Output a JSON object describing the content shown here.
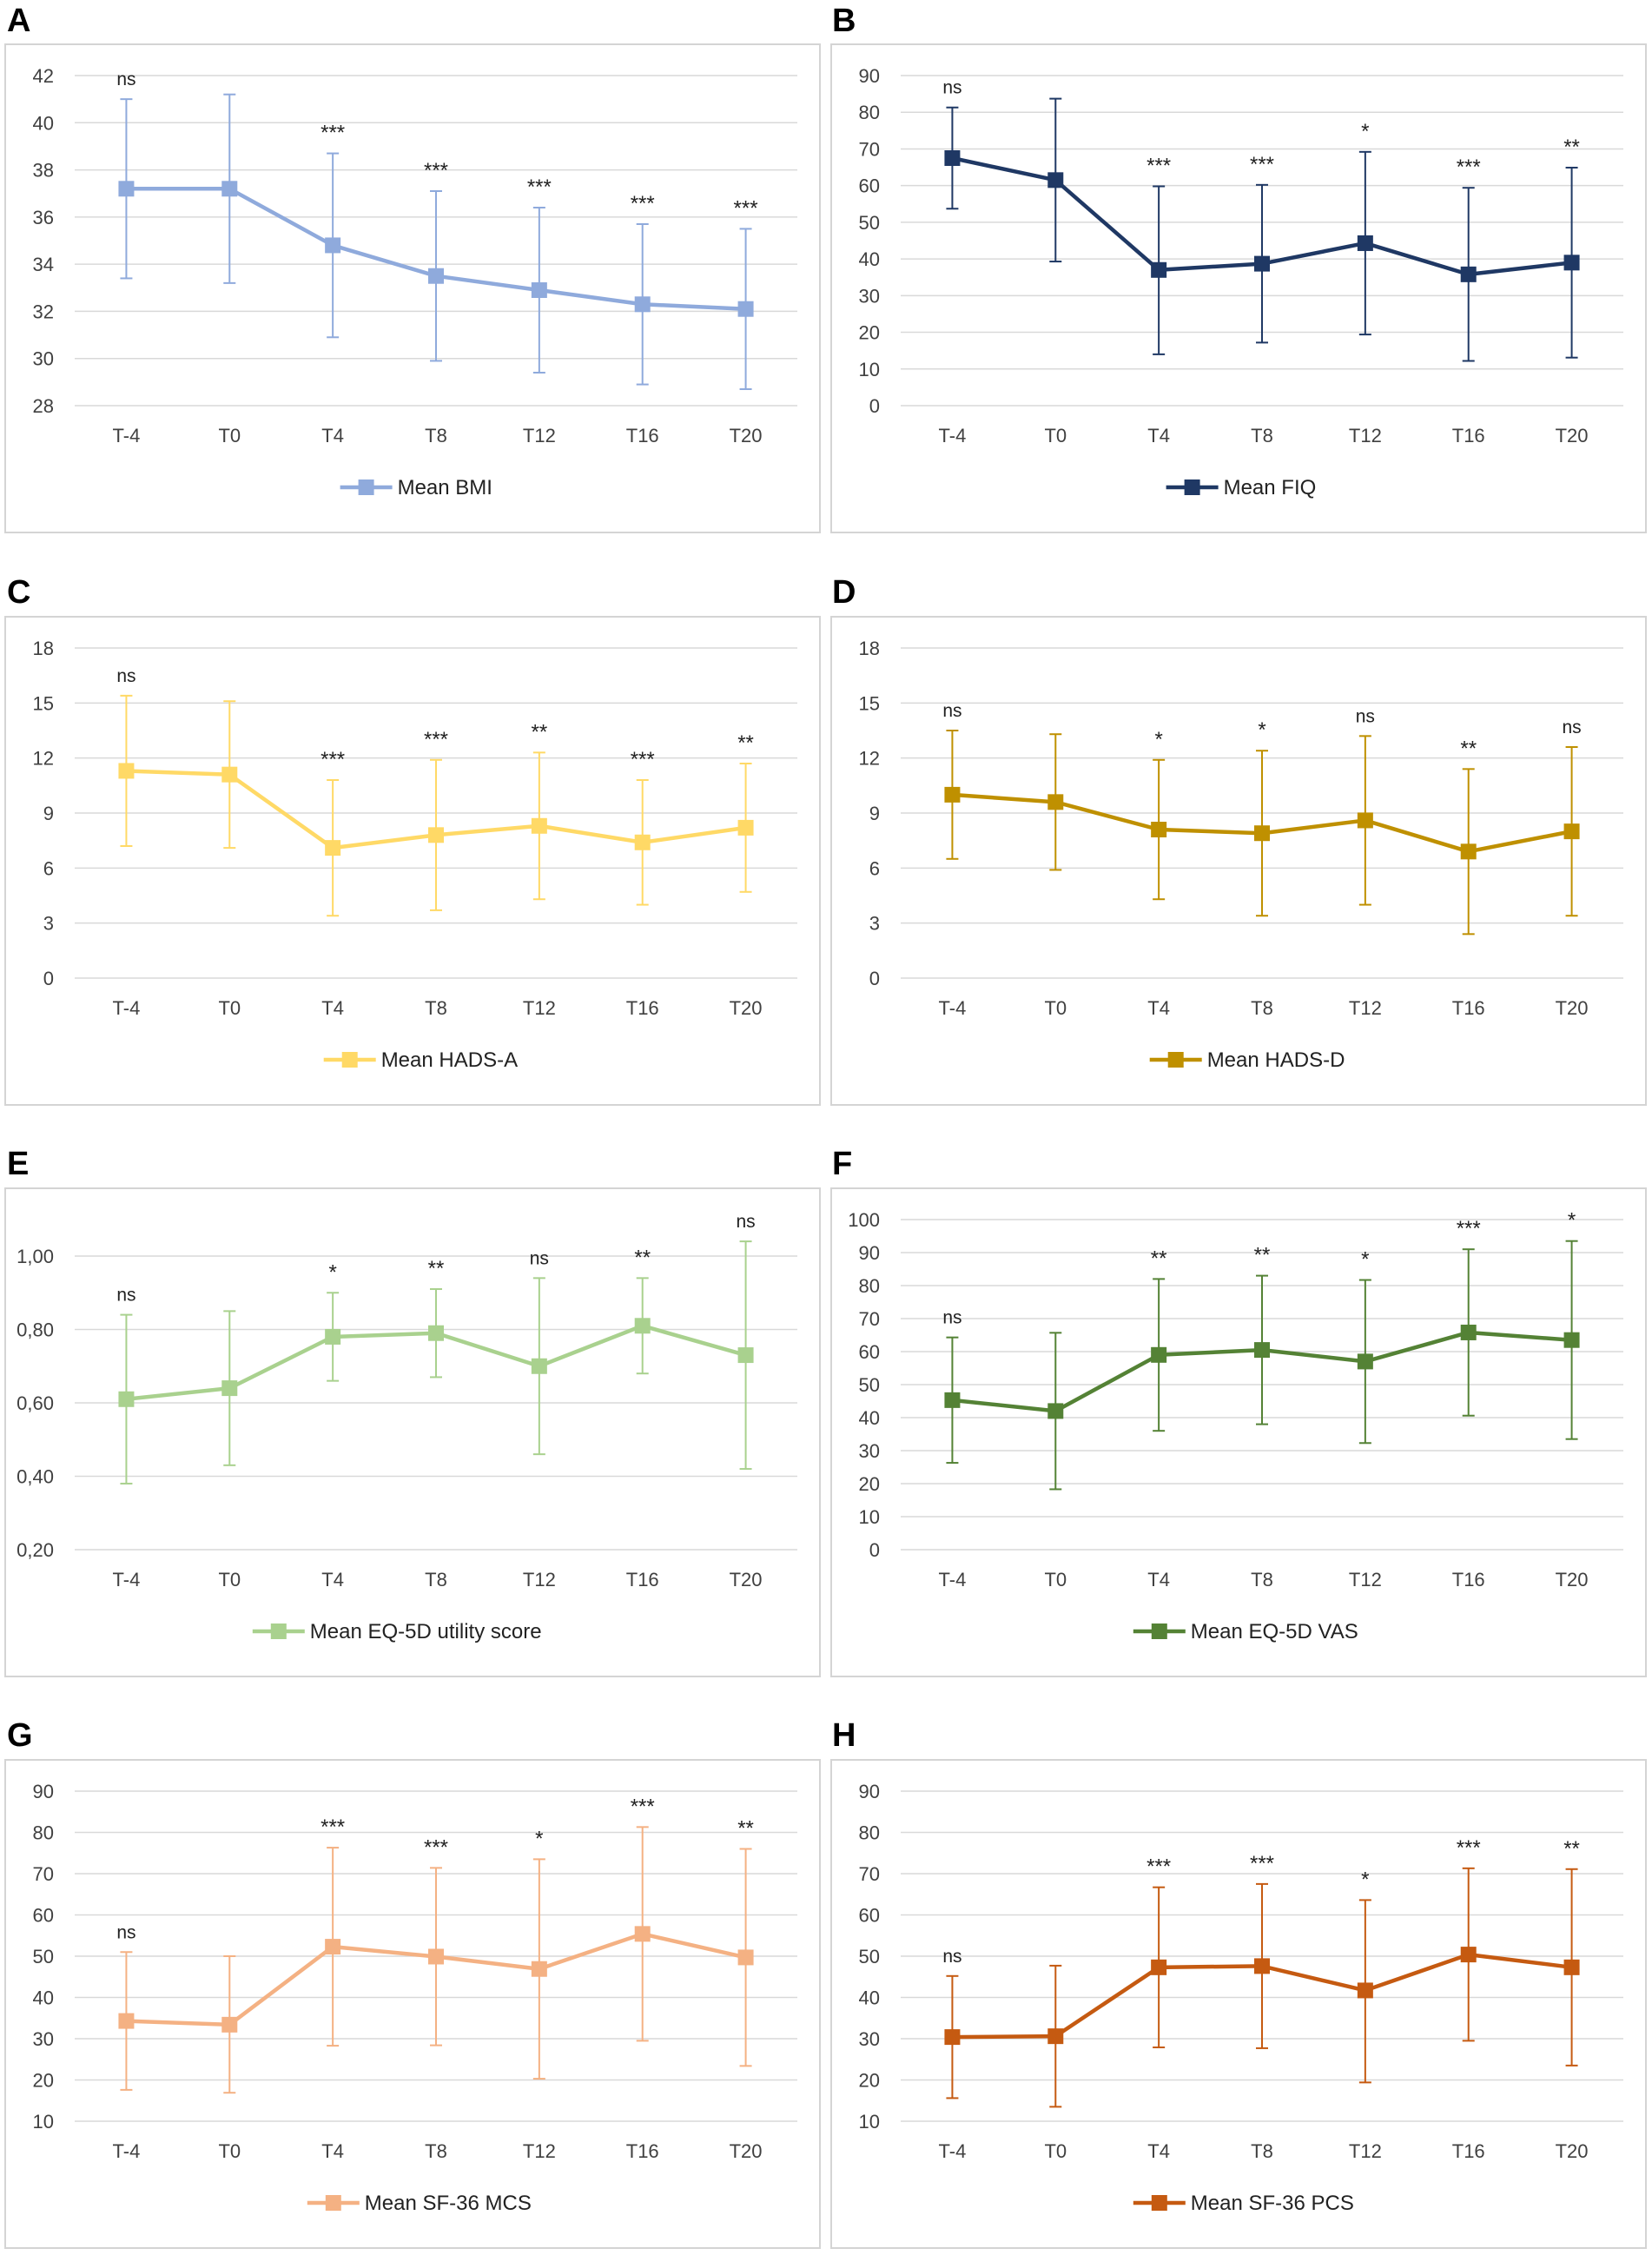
{
  "chart_data": [
    {
      "panel": "A",
      "type": "line",
      "legend": "Mean BMI",
      "color": "#8faadc",
      "categories": [
        "T-4",
        "T0",
        "T4",
        "T8",
        "T12",
        "T16",
        "T20"
      ],
      "values": [
        37.2,
        37.2,
        34.8,
        33.5,
        32.9,
        32.3,
        32.1
      ],
      "error_upper": [
        41.0,
        41.2,
        38.7,
        37.1,
        36.4,
        35.7,
        35.5
      ],
      "error_lower": [
        33.4,
        33.2,
        30.9,
        29.9,
        29.4,
        28.9,
        28.7
      ],
      "annotations": [
        "ns",
        "",
        "***",
        "***",
        "***",
        "***",
        "***"
      ],
      "ylim": [
        28,
        42
      ],
      "yticks": [
        "28",
        "30",
        "32",
        "34",
        "36",
        "38",
        "40",
        "42"
      ],
      "legend_position": "bottom"
    },
    {
      "panel": "B",
      "type": "line",
      "legend": "Mean FIQ",
      "color": "#1f3864",
      "categories": [
        "T-4",
        "T0",
        "T4",
        "T8",
        "T12",
        "T16",
        "T20"
      ],
      "values": [
        67.5,
        61.5,
        37.0,
        38.7,
        44.3,
        35.8,
        39.0
      ],
      "error_upper": [
        81.3,
        83.7,
        59.8,
        60.2,
        69.2,
        59.4,
        64.9
      ],
      "error_lower": [
        53.7,
        39.3,
        14.0,
        17.2,
        19.4,
        12.2,
        13.1
      ],
      "annotations": [
        "ns",
        "",
        "***",
        "***",
        "*",
        "***",
        "**"
      ],
      "ylim": [
        0,
        90
      ],
      "yticks": [
        "0",
        "10",
        "20",
        "30",
        "40",
        "50",
        "60",
        "70",
        "80",
        "90"
      ],
      "legend_position": "bottom"
    },
    {
      "panel": "C",
      "type": "line",
      "legend": "Mean HADS-A",
      "color": "#ffd966",
      "categories": [
        "T-4",
        "T0",
        "T4",
        "T8",
        "T12",
        "T16",
        "T20"
      ],
      "values": [
        11.3,
        11.1,
        7.1,
        7.8,
        8.3,
        7.4,
        8.2
      ],
      "error_upper": [
        15.4,
        15.1,
        10.8,
        11.9,
        12.3,
        10.8,
        11.7
      ],
      "error_lower": [
        7.2,
        7.1,
        3.4,
        3.7,
        4.3,
        4.0,
        4.7
      ],
      "annotations": [
        "ns",
        "",
        "***",
        "***",
        "**",
        "***",
        "**"
      ],
      "ylim": [
        0,
        18
      ],
      "yticks": [
        "0",
        "3",
        "6",
        "9",
        "12",
        "15",
        "18"
      ],
      "legend_position": "bottom"
    },
    {
      "panel": "D",
      "type": "line",
      "legend": "Mean HADS-D",
      "color": "#bf9000",
      "categories": [
        "T-4",
        "T0",
        "T4",
        "T8",
        "T12",
        "T16",
        "T20"
      ],
      "values": [
        10.0,
        9.6,
        8.1,
        7.9,
        8.6,
        6.9,
        8.0
      ],
      "error_upper": [
        13.5,
        13.3,
        11.9,
        12.4,
        13.2,
        11.4,
        12.6
      ],
      "error_lower": [
        6.5,
        5.9,
        4.3,
        3.4,
        4.0,
        2.4,
        3.4
      ],
      "annotations": [
        "ns",
        "",
        "*",
        "*",
        "ns",
        "**",
        "ns"
      ],
      "ylim": [
        0,
        18
      ],
      "yticks": [
        "0",
        "3",
        "6",
        "9",
        "12",
        "15",
        "18"
      ],
      "legend_position": "bottom"
    },
    {
      "panel": "E",
      "type": "line",
      "legend": "Mean EQ-5D utility score",
      "color": "#a9d18e",
      "categories": [
        "T-4",
        "T0",
        "T4",
        "T8",
        "T12",
        "T16",
        "T20"
      ],
      "values": [
        0.61,
        0.64,
        0.78,
        0.79,
        0.7,
        0.81,
        0.73
      ],
      "error_upper": [
        0.84,
        0.85,
        0.9,
        0.91,
        0.94,
        0.94,
        1.04
      ],
      "error_lower": [
        0.38,
        0.43,
        0.66,
        0.67,
        0.46,
        0.68,
        0.42
      ],
      "annotations": [
        "ns",
        "",
        "*",
        "**",
        "ns",
        "**",
        "ns"
      ],
      "ylim": [
        0.2,
        1.0
      ],
      "yticks": [
        "0,20",
        "0,40",
        "0,60",
        "0,80",
        "1,00"
      ],
      "legend_position": "bottom"
    },
    {
      "panel": "F",
      "type": "line",
      "legend": "Mean EQ-5D VAS",
      "color": "#548235",
      "categories": [
        "T-4",
        "T0",
        "T4",
        "T8",
        "T12",
        "T16",
        "T20"
      ],
      "values": [
        45.3,
        42.0,
        59.0,
        60.5,
        57.0,
        65.8,
        63.5
      ],
      "error_upper": [
        64.3,
        65.7,
        82.0,
        83.0,
        81.7,
        91.0,
        93.5
      ],
      "error_lower": [
        26.3,
        18.3,
        36.0,
        38.0,
        32.3,
        40.6,
        33.5
      ],
      "annotations": [
        "ns",
        "",
        "**",
        "**",
        "*",
        "***",
        "*"
      ],
      "ylim": [
        0,
        100
      ],
      "yticks": [
        "0",
        "10",
        "20",
        "30",
        "40",
        "50",
        "60",
        "70",
        "80",
        "90",
        "100"
      ],
      "legend_position": "bottom"
    },
    {
      "panel": "G",
      "type": "line",
      "legend": "Mean SF-36 MCS",
      "color": "#f4b183",
      "categories": [
        "T-4",
        "T0",
        "T4",
        "T8",
        "T12",
        "T16",
        "T20"
      ],
      "values": [
        34.3,
        33.4,
        52.3,
        49.9,
        46.9,
        55.4,
        49.7
      ],
      "error_upper": [
        51.0,
        50.0,
        76.3,
        71.4,
        73.5,
        81.3,
        76.0
      ],
      "error_lower": [
        17.6,
        16.9,
        28.3,
        28.4,
        20.3,
        29.5,
        23.4
      ],
      "annotations": [
        "ns",
        "",
        "***",
        "***",
        "*",
        "***",
        "**"
      ],
      "ylim": [
        10,
        90
      ],
      "yticks": [
        "10",
        "20",
        "30",
        "40",
        "50",
        "60",
        "70",
        "80",
        "90"
      ],
      "legend_position": "bottom"
    },
    {
      "panel": "H",
      "type": "line",
      "legend": "Mean SF-36 PCS",
      "color": "#c55a11",
      "categories": [
        "T-4",
        "T0",
        "T4",
        "T8",
        "T12",
        "T16",
        "T20"
      ],
      "values": [
        30.4,
        30.6,
        47.3,
        47.6,
        41.7,
        50.4,
        47.3
      ],
      "error_upper": [
        45.2,
        47.7,
        66.7,
        67.5,
        63.6,
        71.3,
        71.1
      ],
      "error_lower": [
        15.6,
        13.5,
        27.9,
        27.7,
        19.4,
        29.5,
        23.5
      ],
      "annotations": [
        "ns",
        "",
        "***",
        "***",
        "*",
        "***",
        "**"
      ],
      "ylim": [
        10,
        90
      ],
      "yticks": [
        "10",
        "20",
        "30",
        "40",
        "50",
        "60",
        "70",
        "80",
        "90"
      ],
      "legend_position": "bottom"
    }
  ],
  "colors": {
    "grid": "#d9d9d9",
    "axis_text": "#404040",
    "box_border": "#d4d4d4"
  }
}
